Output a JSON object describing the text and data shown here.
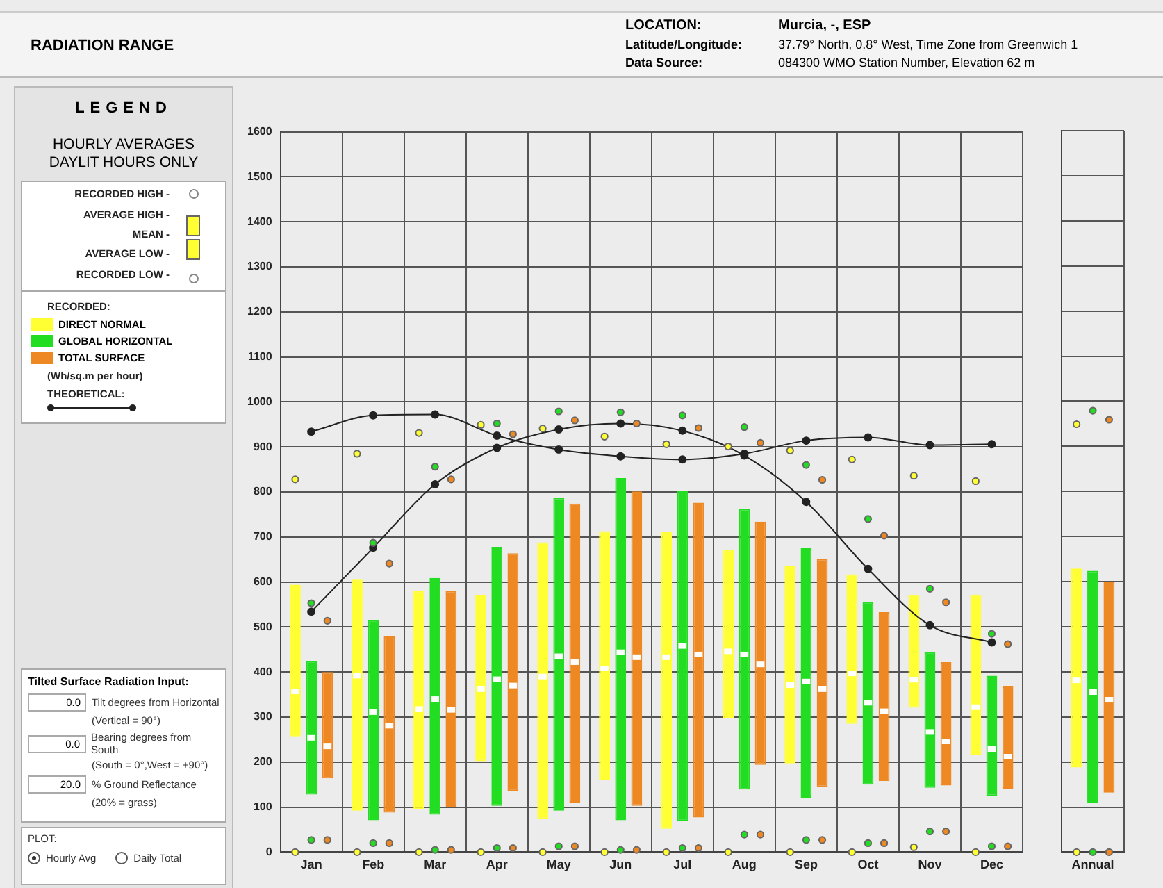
{
  "chart_data": [
    {
      "type": "box",
      "title": "RADIATION RANGE",
      "legend_title": "LEGEND",
      "ylabel": "(Wh/sq.m per hour)",
      "legend": "left",
      "grid": true,
      "ylim": [
        0,
        1600
      ],
      "yticks": [
        0,
        100,
        200,
        300,
        400,
        500,
        600,
        700,
        800,
        900,
        1000,
        1100,
        1200,
        1300,
        1400,
        1500,
        1600
      ],
      "categories": [
        "Jan",
        "Feb",
        "Mar",
        "Apr",
        "May",
        "Jun",
        "Jul",
        "Aug",
        "Sep",
        "Oct",
        "Nov",
        "Dec"
      ],
      "annotations": [
        "HOURLY AVERAGES DAYLIT HOURS ONLY",
        "RECORDED HIGH -",
        "AVERAGE HIGH -",
        "MEAN -",
        "AVERAGE LOW -",
        "RECORDED LOW -",
        "RECORDED:",
        "LOCATION:",
        "Murcia, -, ESP",
        "Latitude/Longitude:",
        "37.79° North, 0.8° West, Time Zone from Greenwich 1",
        "Data Source:",
        "084300 WMO Station Number, Elevation 62 m",
        "Tilted Surface Radiation Input:",
        "0.0",
        "Tilt degrees from Horizontal",
        "(Vertical = 90°)",
        "0.0",
        "Bearing degrees from South",
        "(South = 0°,West = +90°)",
        "20.0",
        "% Ground Reflectance",
        "(20% = grass)",
        "PLOT:",
        "Hourly Avg",
        "Daily Total"
      ],
      "series": [
        {
          "name": "DIRECT NORMAL",
          "color": "#ffff33",
          "boxes": [
            {
              "low": 257,
              "q1": 257,
              "median": 357,
              "q3": 594,
              "high": 594,
              "outliers": [
                0,
                828
              ]
            },
            {
              "low": 92,
              "q1": 92,
              "median": 392,
              "q3": 605,
              "high": 605,
              "outliers": [
                0,
                885
              ]
            },
            {
              "low": 96,
              "q1": 96,
              "median": 318,
              "q3": 580,
              "high": 580,
              "outliers": [
                0,
                931
              ]
            },
            {
              "low": 202,
              "q1": 202,
              "median": 362,
              "q3": 570,
              "high": 570,
              "outliers": [
                0,
                949
              ]
            },
            {
              "low": 74,
              "q1": 74,
              "median": 390,
              "q3": 688,
              "high": 688,
              "outliers": [
                0,
                941
              ]
            },
            {
              "low": 161,
              "q1": 161,
              "median": 408,
              "q3": 713,
              "high": 713,
              "outliers": [
                0,
                923
              ]
            },
            {
              "low": 52,
              "q1": 52,
              "median": 433,
              "q3": 711,
              "high": 711,
              "outliers": [
                0,
                906
              ]
            },
            {
              "low": 297,
              "q1": 297,
              "median": 446,
              "q3": 671,
              "high": 671,
              "outliers": [
                0,
                901
              ]
            },
            {
              "low": 197,
              "q1": 197,
              "median": 371,
              "q3": 635,
              "high": 635,
              "outliers": [
                0,
                892
              ]
            },
            {
              "low": 285,
              "q1": 285,
              "median": 397,
              "q3": 617,
              "high": 617,
              "outliers": [
                0,
                872
              ]
            },
            {
              "low": 321,
              "q1": 321,
              "median": 383,
              "q3": 572,
              "high": 572,
              "outliers": [
                11,
                836
              ]
            },
            {
              "low": 215,
              "q1": 215,
              "median": 322,
              "q3": 572,
              "high": 572,
              "outliers": [
                0,
                824
              ]
            }
          ]
        },
        {
          "name": "GLOBAL HORIZONTAL",
          "color": "#22dd22",
          "boxes": [
            {
              "low": 128,
              "q1": 128,
              "median": 254,
              "q3": 424,
              "high": 424,
              "outliers": [
                27,
                553
              ]
            },
            {
              "low": 71,
              "q1": 71,
              "median": 311,
              "q3": 515,
              "high": 515,
              "outliers": [
                20,
                687
              ]
            },
            {
              "low": 83,
              "q1": 83,
              "median": 340,
              "q3": 609,
              "high": 609,
              "outliers": [
                5,
                856
              ]
            },
            {
              "low": 103,
              "q1": 103,
              "median": 384,
              "q3": 678,
              "high": 678,
              "outliers": [
                9,
                952
              ]
            },
            {
              "low": 92,
              "q1": 92,
              "median": 435,
              "q3": 787,
              "high": 787,
              "outliers": [
                13,
                979
              ]
            },
            {
              "low": 71,
              "q1": 71,
              "median": 444,
              "q3": 831,
              "high": 831,
              "outliers": [
                5,
                977
              ]
            },
            {
              "low": 69,
              "q1": 69,
              "median": 458,
              "q3": 803,
              "high": 803,
              "outliers": [
                9,
                970
              ]
            },
            {
              "low": 139,
              "q1": 139,
              "median": 439,
              "q3": 762,
              "high": 762,
              "outliers": [
                39,
                944
              ]
            },
            {
              "low": 121,
              "q1": 121,
              "median": 379,
              "q3": 675,
              "high": 675,
              "outliers": [
                27,
                860
              ]
            },
            {
              "low": 150,
              "q1": 150,
              "median": 332,
              "q3": 555,
              "high": 555,
              "outliers": [
                20,
                740
              ]
            },
            {
              "low": 143,
              "q1": 143,
              "median": 267,
              "q3": 444,
              "high": 444,
              "outliers": [
                46,
                585
              ]
            },
            {
              "low": 125,
              "q1": 125,
              "median": 229,
              "q3": 392,
              "high": 392,
              "outliers": [
                13,
                485
              ]
            }
          ]
        },
        {
          "name": "TOTAL SURFACE",
          "color": "#ee8822",
          "boxes": [
            {
              "low": 164,
              "q1": 164,
              "median": 235,
              "q3": 400,
              "high": 400,
              "outliers": [
                27,
                514
              ]
            },
            {
              "low": 88,
              "q1": 88,
              "median": 281,
              "q3": 479,
              "high": 479,
              "outliers": [
                20,
                641
              ]
            },
            {
              "low": 101,
              "q1": 101,
              "median": 316,
              "q3": 580,
              "high": 580,
              "outliers": [
                5,
                828
              ]
            },
            {
              "low": 136,
              "q1": 136,
              "median": 370,
              "q3": 664,
              "high": 664,
              "outliers": [
                9,
                928
              ]
            },
            {
              "low": 110,
              "q1": 110,
              "median": 422,
              "q3": 774,
              "high": 774,
              "outliers": [
                13,
                959
              ]
            },
            {
              "low": 103,
              "q1": 103,
              "median": 433,
              "q3": 801,
              "high": 801,
              "outliers": [
                5,
                952
              ]
            },
            {
              "low": 77,
              "q1": 77,
              "median": 439,
              "q3": 776,
              "high": 776,
              "outliers": [
                9,
                942
              ]
            },
            {
              "low": 194,
              "q1": 194,
              "median": 417,
              "q3": 734,
              "high": 734,
              "outliers": [
                39,
                909
              ]
            },
            {
              "low": 145,
              "q1": 145,
              "median": 362,
              "q3": 651,
              "high": 651,
              "outliers": [
                27,
                827
              ]
            },
            {
              "low": 158,
              "q1": 158,
              "median": 313,
              "q3": 533,
              "high": 533,
              "outliers": [
                20,
                703
              ]
            },
            {
              "low": 148,
              "q1": 148,
              "median": 246,
              "q3": 422,
              "high": 422,
              "outliers": [
                46,
                555
              ]
            },
            {
              "low": 141,
              "q1": 141,
              "median": 212,
              "q3": 368,
              "high": 368,
              "outliers": [
                13,
                462
              ]
            }
          ]
        },
        {
          "name": "THEORETICAL:",
          "type": "line",
          "color": "#222222",
          "marker": "circle",
          "values": [
            934,
            970,
            972,
            925,
            894,
            879,
            872,
            885,
            914,
            921,
            904,
            906
          ]
        },
        {
          "type": "line",
          "color": "#222222",
          "marker": "circle",
          "values": [
            534,
            676,
            817,
            898,
            939,
            952,
            936,
            881,
            778,
            629,
            504,
            466
          ]
        }
      ]
    },
    {
      "type": "box",
      "grid": true,
      "tick_labels": "x",
      "ylim": [
        0,
        1600
      ],
      "yticks": [
        0,
        100,
        200,
        300,
        400,
        500,
        600,
        700,
        800,
        900,
        1000,
        1100,
        1200,
        1300,
        1400,
        1500,
        1600
      ],
      "categories": [
        "Annual"
      ],
      "series": [
        {
          "color": "#ffff33",
          "boxes": [
            {
              "low": 188,
              "q1": 188,
              "median": 381,
              "q3": 629,
              "high": 629,
              "outliers": [
                0,
                949
              ]
            }
          ]
        },
        {
          "color": "#22dd22",
          "boxes": [
            {
              "low": 110,
              "q1": 110,
              "median": 355,
              "q3": 624,
              "high": 624,
              "outliers": [
                0,
                979
              ]
            }
          ]
        },
        {
          "color": "#ee8822",
          "boxes": [
            {
              "low": 132,
              "q1": 132,
              "median": 338,
              "q3": 600,
              "high": 600,
              "outliers": [
                0,
                959
              ]
            }
          ]
        }
      ]
    }
  ]
}
